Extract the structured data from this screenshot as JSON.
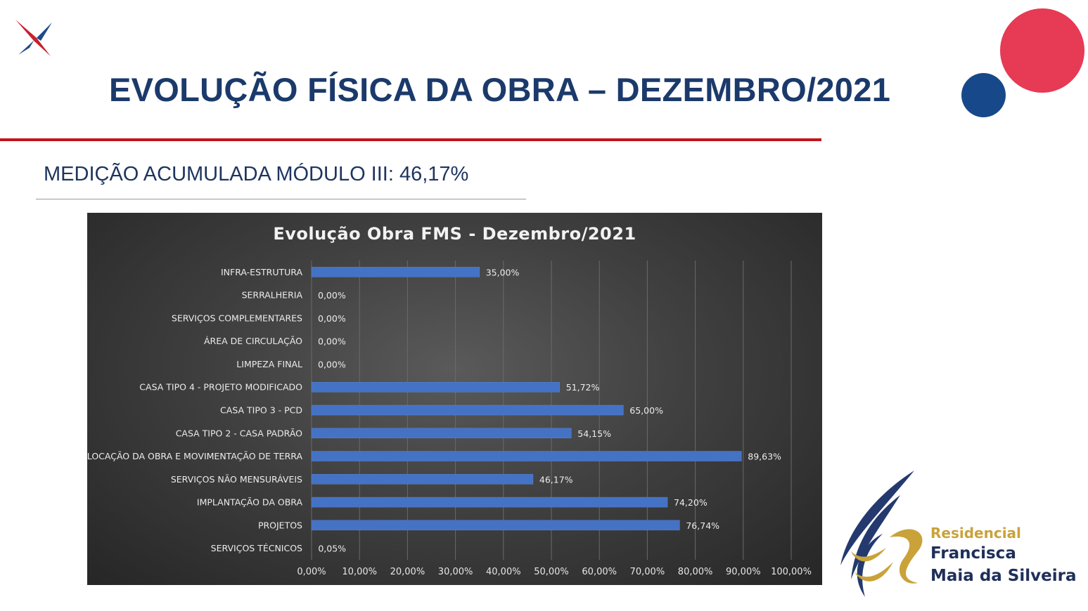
{
  "header": {
    "title": "EVOLUÇÃO FÍSICA DA OBRA – DEZEMBRO/2021",
    "subtitle": "MEDIÇÃO ACUMULADA MÓDULO III: 46,17%"
  },
  "brand": {
    "line1": "Residencial",
    "line2": "Francisca",
    "line3": "Maia da Silveira"
  },
  "colors": {
    "title": "#1b3a6b",
    "accent_red": "#e63a55",
    "accent_blue": "#17498a",
    "bar": "#4472c4"
  },
  "chart_data": {
    "type": "bar",
    "orientation": "horizontal",
    "title": "Evolução Obra FMS - Dezembro/2021",
    "categories": [
      "INFRA-ESTRUTURA",
      "SERRALHERIA",
      "SERVIÇOS COMPLEMENTARES",
      "ÁREA DE CIRCULAÇÃO",
      "LIMPEZA FINAL",
      "CASA TIPO 4 - PROJETO MODIFICADO",
      "CASA TIPO 3 - PCD",
      "CASA TIPO 2 - CASA PADRÃO",
      "LOCAÇÃO DA OBRA E MOVIMENTAÇÃO DE TERRA",
      "SERVIÇOS NÃO MENSURÁVEIS",
      "IMPLANTAÇÃO DA OBRA",
      "PROJETOS",
      "SERVIÇOS TÉCNICOS"
    ],
    "values": [
      35.0,
      0.0,
      0.0,
      0.0,
      0.0,
      51.72,
      65.0,
      54.15,
      89.63,
      46.17,
      74.2,
      76.74,
      0.05
    ],
    "value_labels": [
      "35,00%",
      "0,00%",
      "0,00%",
      "0,00%",
      "0,00%",
      "51,72%",
      "65,00%",
      "54,15%",
      "89,63%",
      "46,17%",
      "74,20%",
      "76,74%",
      "0,05%"
    ],
    "xlim": [
      0,
      100
    ],
    "xticks": [
      "0,00%",
      "10,00%",
      "20,00%",
      "30,00%",
      "40,00%",
      "50,00%",
      "60,00%",
      "70,00%",
      "80,00%",
      "90,00%",
      "100,00%"
    ],
    "grid": true,
    "legend": "none"
  }
}
